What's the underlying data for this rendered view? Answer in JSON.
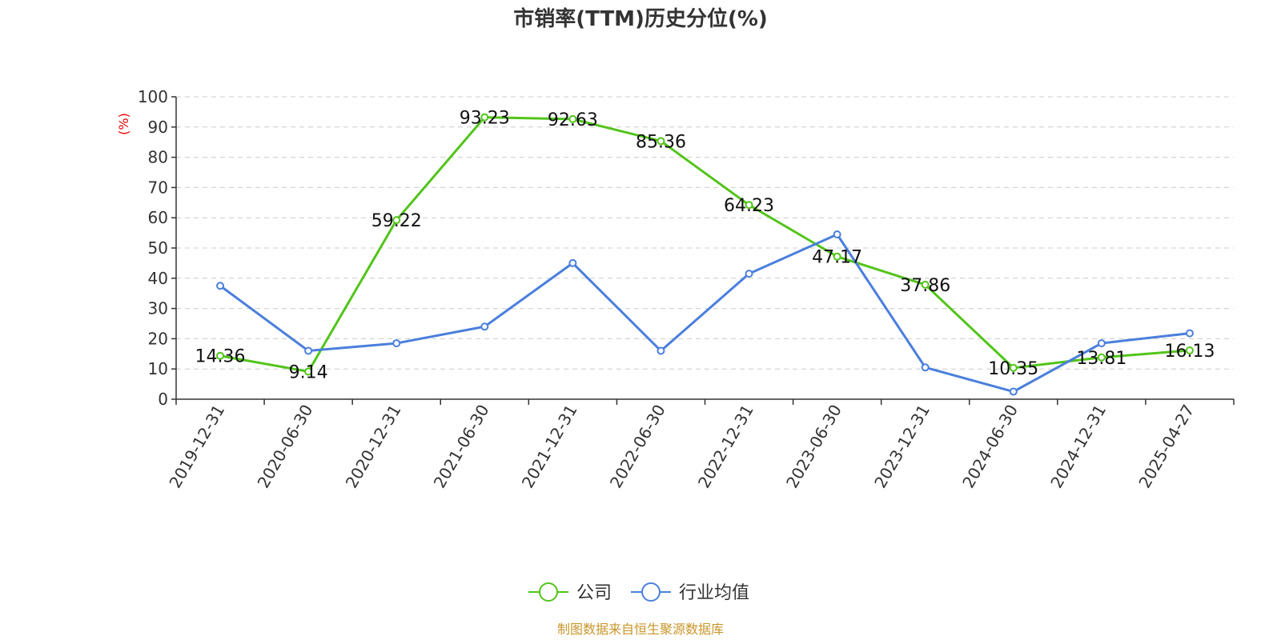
{
  "chart_data": {
    "type": "line",
    "title": "市销率(TTM)历史分位(%)",
    "ylabel": "(%)",
    "xlabel": "",
    "ylim": [
      0,
      100
    ],
    "yticks": [
      0,
      10,
      20,
      30,
      40,
      50,
      60,
      70,
      80,
      90,
      100
    ],
    "grid": true,
    "legend_position": "bottom",
    "categories": [
      "2019-12-31",
      "2020-06-30",
      "2020-12-31",
      "2021-06-30",
      "2021-12-31",
      "2022-06-30",
      "2022-12-31",
      "2023-06-30",
      "2023-12-31",
      "2024-06-30",
      "2024-12-31",
      "2025-04-27"
    ],
    "series": [
      {
        "name": "公司",
        "color": "#52c41a",
        "values": [
          14.36,
          9.14,
          59.22,
          93.23,
          92.63,
          85.36,
          64.23,
          47.17,
          37.86,
          10.35,
          13.81,
          16.13
        ],
        "labels": [
          "14.36",
          "9.14",
          "59.22",
          "93.23",
          "92.63",
          "85.36",
          "64.23",
          "47.17",
          "37.86",
          "10.35",
          "13.81",
          "16.13"
        ]
      },
      {
        "name": "行业均值",
        "color": "#4a7fdc",
        "values": [
          37.5,
          16.0,
          18.5,
          24.0,
          45.0,
          16.0,
          41.5,
          54.5,
          10.5,
          2.5,
          18.5,
          21.8
        ]
      }
    ]
  },
  "source": "制图数据来自恒生聚源数据库"
}
